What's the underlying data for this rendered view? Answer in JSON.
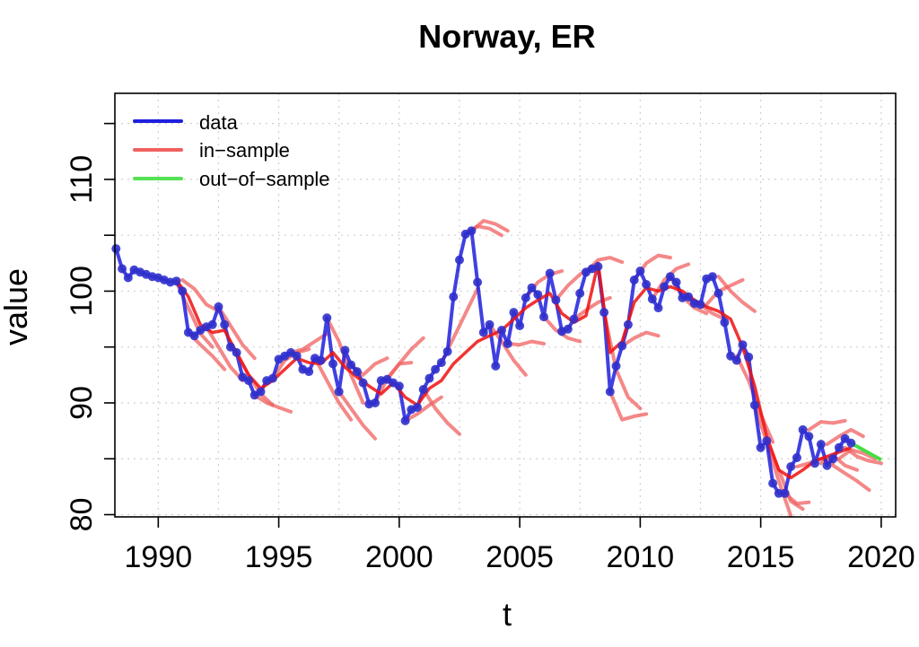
{
  "chart_data": {
    "type": "line",
    "title": "Norway, ER",
    "xlabel": "t",
    "ylabel": "value",
    "xlim": [
      1988.2,
      2020.6
    ],
    "ylim": [
      79.8,
      117.7
    ],
    "xticks": [
      1990,
      1995,
      2000,
      2005,
      2010,
      2015,
      2020
    ],
    "yticks": [
      80,
      90,
      100,
      110
    ],
    "grid": true,
    "colors": {
      "data": "#1f1fdd",
      "in_sample": "#f06060",
      "in_sample_mean": "#ee1111",
      "out_of_sample": "#44dd44"
    },
    "legend": [
      {
        "label": "data",
        "color": "#1f1fdd"
      },
      {
        "label": "in−sample",
        "color": "#f06060"
      },
      {
        "label": "out−of−sample",
        "color": "#55e055"
      }
    ],
    "series": [
      {
        "name": "data",
        "x": [
          1988.25,
          1988.5,
          1988.75,
          1989.0,
          1989.25,
          1989.5,
          1989.75,
          1990.0,
          1990.25,
          1990.5,
          1990.75,
          1991.0,
          1991.25,
          1991.5,
          1991.75,
          1992.0,
          1992.25,
          1992.5,
          1992.75,
          1993.0,
          1993.25,
          1993.5,
          1993.75,
          1994.0,
          1994.25,
          1994.5,
          1994.75,
          1995.0,
          1995.25,
          1995.5,
          1995.75,
          1996.0,
          1996.25,
          1996.5,
          1996.75,
          1997.0,
          1997.25,
          1997.5,
          1997.75,
          1998.0,
          1998.25,
          1998.5,
          1998.75,
          1999.0,
          1999.25,
          1999.5,
          1999.75,
          2000.0,
          2000.25,
          2000.5,
          2000.75,
          2001.0,
          2001.25,
          2001.5,
          2001.75,
          2002.0,
          2002.25,
          2002.5,
          2002.75,
          2003.0,
          2003.25,
          2003.5,
          2003.75,
          2004.0,
          2004.25,
          2004.5,
          2004.75,
          2005.0,
          2005.25,
          2005.5,
          2005.75,
          2006.0,
          2006.25,
          2006.5,
          2006.75,
          2007.0,
          2007.25,
          2007.5,
          2007.75,
          2008.0,
          2008.25,
          2008.5,
          2008.75,
          2009.0,
          2009.25,
          2009.5,
          2009.75,
          2010.0,
          2010.25,
          2010.5,
          2010.75,
          2011.0,
          2011.25,
          2011.5,
          2011.75,
          2012.0,
          2012.25,
          2012.5,
          2012.75,
          2013.0,
          2013.25,
          2013.5,
          2013.75,
          2014.0,
          2014.25,
          2014.5,
          2014.75,
          2015.0,
          2015.25,
          2015.5,
          2015.75,
          2016.0,
          2016.25,
          2016.5,
          2016.75,
          2017.0,
          2017.25,
          2017.5,
          2017.75,
          2018.0,
          2018.25,
          2018.5,
          2018.75
        ],
        "values": [
          103.8,
          102.0,
          101.2,
          101.9,
          101.7,
          101.5,
          101.3,
          101.2,
          101.0,
          100.8,
          100.9,
          100.0,
          96.3,
          96.0,
          96.5,
          96.8,
          97.0,
          98.6,
          97.0,
          95.0,
          94.5,
          92.3,
          92.0,
          90.7,
          91.0,
          92.0,
          92.2,
          93.9,
          94.2,
          94.5,
          94.2,
          93.0,
          92.8,
          94.0,
          93.8,
          97.6,
          93.5,
          91.0,
          94.7,
          93.4,
          92.8,
          91.8,
          89.9,
          90.0,
          92.0,
          92.1,
          91.8,
          91.5,
          88.4,
          89.4,
          89.6,
          91.2,
          92.2,
          93.0,
          93.6,
          94.6,
          99.5,
          102.8,
          105.1,
          105.4,
          100.8,
          96.3,
          97.0,
          93.3,
          96.5,
          95.3,
          98.1,
          96.9,
          99.4,
          100.3,
          99.7,
          97.7,
          101.6,
          99.2,
          96.4,
          96.6,
          97.5,
          99.8,
          101.7,
          102.0,
          102.2,
          98.1,
          91.0,
          93.3,
          95.1,
          97.0,
          101.0,
          101.8,
          100.6,
          99.3,
          98.5,
          100.4,
          101.3,
          100.8,
          99.4,
          99.5,
          98.9,
          98.8,
          101.1,
          101.3,
          99.8,
          97.2,
          94.2,
          93.8,
          95.2,
          94.1,
          89.8,
          86.0,
          86.6,
          82.8,
          81.9,
          81.9,
          84.3,
          85.1,
          87.6,
          87.0,
          84.6,
          86.3,
          84.4,
          85.0,
          86.0,
          86.8,
          86.4
        ]
      },
      {
        "name": "in-sample mean",
        "x": [
          1990.75,
          1991.25,
          1991.75,
          1992.25,
          1992.75,
          1993.25,
          1993.75,
          1994.25,
          1994.75,
          1995.25,
          1995.75,
          1996.25,
          1996.75,
          1997.25,
          1997.75,
          1998.25,
          1998.75,
          1999.25,
          1999.75,
          2000.25,
          2000.75,
          2001.25,
          2001.75,
          2002.25,
          2002.75,
          2003.25,
          2003.75,
          2004.25,
          2004.75,
          2005.25,
          2005.75,
          2006.25,
          2006.75,
          2007.25,
          2007.75,
          2008.25,
          2008.75,
          2009.25,
          2009.75,
          2010.25,
          2010.75,
          2011.25,
          2011.75,
          2012.25,
          2012.75,
          2013.25,
          2013.75,
          2014.25,
          2014.75,
          2015.25,
          2015.75,
          2016.25,
          2016.75,
          2017.25,
          2017.75,
          2018.25,
          2018.75
        ],
        "values": [
          101.0,
          99.5,
          97.0,
          96.3,
          96.5,
          94.5,
          92.5,
          91.3,
          92.0,
          93.0,
          94.0,
          93.6,
          93.5,
          94.5,
          93.2,
          92.3,
          91.5,
          90.8,
          91.8,
          90.5,
          89.8,
          91.3,
          92.0,
          93.5,
          94.5,
          95.5,
          96.0,
          96.5,
          97.5,
          98.5,
          99.2,
          99.8,
          98.0,
          97.2,
          97.8,
          102.5,
          94.5,
          95.5,
          99.0,
          100.3,
          100.0,
          100.4,
          100.0,
          99.2,
          98.6,
          98.2,
          97.5,
          95.0,
          91.5,
          87.0,
          84.0,
          83.3,
          84.0,
          84.8,
          85.2,
          85.6,
          86.0
        ]
      },
      {
        "name": "out-of-sample",
        "x": [
          2018.75,
          2019.0,
          2019.25,
          2019.5,
          2019.75,
          2020.0
        ],
        "values": [
          86.4,
          86.1,
          85.8,
          85.5,
          85.2,
          84.9
        ]
      }
    ],
    "forecast_paths": [
      {
        "x": [
          1990.75,
          1991.25,
          1991.75,
          1992.25
        ],
        "values": [
          100.8,
          98.5,
          96.2,
          95.0
        ]
      },
      {
        "x": [
          1991.0,
          1991.5,
          1992.0,
          1992.5
        ],
        "values": [
          101.0,
          100.2,
          98.8,
          98.2
        ]
      },
      {
        "x": [
          1991.25,
          1991.75,
          1992.25,
          1992.75
        ],
        "values": [
          96.3,
          95.2,
          94.2,
          93.0
        ]
      },
      {
        "x": [
          1992.0,
          1992.5,
          1993.0,
          1993.5
        ],
        "values": [
          96.8,
          95.0,
          93.2,
          92.0
        ]
      },
      {
        "x": [
          1992.5,
          1993.0,
          1993.5,
          1994.0
        ],
        "values": [
          98.6,
          96.9,
          95.2,
          94.0
        ]
      },
      {
        "x": [
          1993.25,
          1993.75,
          1994.25,
          1994.75
        ],
        "values": [
          94.5,
          92.5,
          90.8,
          89.8
        ]
      },
      {
        "x": [
          1994.0,
          1994.5,
          1995.0,
          1995.5
        ],
        "values": [
          90.7,
          90.0,
          89.6,
          89.2
        ]
      },
      {
        "x": [
          1994.75,
          1995.25,
          1995.75,
          1996.25
        ],
        "values": [
          92.2,
          93.8,
          94.5,
          94.8
        ]
      },
      {
        "x": [
          1995.5,
          1996.0,
          1996.5,
          1997.0
        ],
        "values": [
          94.5,
          94.8,
          95.5,
          96.2
        ]
      },
      {
        "x": [
          1996.5,
          1997.0,
          1997.5,
          1998.0
        ],
        "values": [
          94.0,
          92.0,
          90.0,
          88.5
        ]
      },
      {
        "x": [
          1997.0,
          1997.5,
          1998.0,
          1998.5
        ],
        "values": [
          97.6,
          95.5,
          92.5,
          90.0
        ]
      },
      {
        "x": [
          1997.5,
          1998.0,
          1998.5,
          1999.0
        ],
        "values": [
          91.0,
          89.5,
          88.0,
          86.8
        ]
      },
      {
        "x": [
          1998.0,
          1998.5,
          1999.0,
          1999.5
        ],
        "values": [
          93.4,
          92.5,
          93.5,
          94.0
        ]
      },
      {
        "x": [
          1999.0,
          1999.5,
          2000.0,
          2000.5
        ],
        "values": [
          90.0,
          92.2,
          93.5,
          93.6
        ]
      },
      {
        "x": [
          1999.5,
          2000.0,
          2000.5,
          2001.0
        ],
        "values": [
          92.1,
          93.5,
          94.8,
          95.8
        ]
      },
      {
        "x": [
          2000.25,
          2000.75,
          2001.25,
          2001.75
        ],
        "values": [
          88.4,
          89.0,
          89.8,
          90.5
        ]
      },
      {
        "x": [
          2001.0,
          2001.5,
          2002.0,
          2002.5
        ],
        "values": [
          91.2,
          89.5,
          88.2,
          87.2
        ]
      },
      {
        "x": [
          2001.75,
          2002.25,
          2002.75,
          2003.25
        ],
        "values": [
          93.6,
          95.8,
          98.0,
          100.2
        ]
      },
      {
        "x": [
          2002.75,
          2003.25,
          2003.75,
          2004.25
        ],
        "values": [
          105.1,
          105.8,
          105.6,
          105.0
        ]
      },
      {
        "x": [
          2003.0,
          2003.5,
          2004.0,
          2004.5
        ],
        "values": [
          105.4,
          106.3,
          106.0,
          105.4
        ]
      },
      {
        "x": [
          2003.75,
          2004.25,
          2004.75,
          2005.25
        ],
        "values": [
          97.0,
          95.5,
          93.8,
          92.5
        ]
      },
      {
        "x": [
          2004.5,
          2005.0,
          2005.5,
          2006.0
        ],
        "values": [
          95.3,
          95.2,
          95.5,
          95.3
        ]
      },
      {
        "x": [
          2005.25,
          2005.75,
          2006.25,
          2006.75
        ],
        "values": [
          99.4,
          100.8,
          101.5,
          101.8
        ]
      },
      {
        "x": [
          2006.0,
          2006.5,
          2007.0,
          2007.5
        ],
        "values": [
          97.7,
          96.5,
          95.8,
          95.5
        ]
      },
      {
        "x": [
          2006.5,
          2007.0,
          2007.5,
          2008.0
        ],
        "values": [
          99.2,
          100.5,
          101.5,
          102.2
        ]
      },
      {
        "x": [
          2007.25,
          2007.75,
          2008.25,
          2008.75
        ],
        "values": [
          97.5,
          98.3,
          99.0,
          99.4
        ]
      },
      {
        "x": [
          2007.75,
          2008.25,
          2008.75,
          2009.25
        ],
        "values": [
          101.7,
          102.8,
          103.0,
          102.6
        ]
      },
      {
        "x": [
          2008.5,
          2009.0,
          2009.5,
          2010.0
        ],
        "values": [
          98.1,
          93.0,
          90.5,
          89.5
        ]
      },
      {
        "x": [
          2008.75,
          2009.25,
          2009.75,
          2010.25
        ],
        "values": [
          91.0,
          88.5,
          88.8,
          89.0
        ]
      },
      {
        "x": [
          2009.25,
          2009.75,
          2010.25,
          2010.75
        ],
        "values": [
          95.1,
          95.8,
          96.3,
          96.0
        ]
      },
      {
        "x": [
          2009.75,
          2010.25,
          2010.75,
          2011.25
        ],
        "values": [
          101.0,
          102.5,
          103.2,
          103.0
        ]
      },
      {
        "x": [
          2010.5,
          2011.0,
          2011.5,
          2012.0
        ],
        "values": [
          99.3,
          101.0,
          102.0,
          102.4
        ]
      },
      {
        "x": [
          2011.25,
          2011.75,
          2012.25,
          2012.75
        ],
        "values": [
          101.3,
          99.5,
          98.5,
          98.0
        ]
      },
      {
        "x": [
          2012.0,
          2012.5,
          2013.0,
          2013.5
        ],
        "values": [
          99.5,
          98.8,
          98.0,
          97.5
        ]
      },
      {
        "x": [
          2012.75,
          2013.25,
          2013.75,
          2014.25
        ],
        "values": [
          98.8,
          100.0,
          100.5,
          101.0
        ]
      },
      {
        "x": [
          2013.25,
          2013.75,
          2014.25,
          2014.75
        ],
        "values": [
          101.3,
          100.0,
          99.0,
          98.2
        ]
      },
      {
        "x": [
          2014.0,
          2014.5,
          2015.0,
          2015.5
        ],
        "values": [
          94.2,
          92.0,
          89.0,
          86.5
        ]
      },
      {
        "x": [
          2014.75,
          2015.25,
          2015.75,
          2016.25
        ],
        "values": [
          89.8,
          86.5,
          83.0,
          79.9
        ]
      },
      {
        "x": [
          2015.25,
          2015.75,
          2016.25,
          2016.75
        ],
        "values": [
          86.6,
          84.0,
          81.2,
          80.5
        ]
      },
      {
        "x": [
          2016.0,
          2016.5,
          2017.0
        ],
        "values": [
          81.9,
          81.0,
          81.1
        ]
      },
      {
        "x": [
          2016.5,
          2017.0,
          2017.5,
          2018.0
        ],
        "values": [
          84.3,
          84.6,
          85.0,
          84.6
        ]
      },
      {
        "x": [
          2017.0,
          2017.5,
          2018.0,
          2018.5
        ],
        "values": [
          87.6,
          88.3,
          88.2,
          88.4
        ]
      },
      {
        "x": [
          2017.5,
          2018.0,
          2018.5,
          2019.0
        ],
        "values": [
          84.6,
          85.3,
          84.4,
          84.0
        ]
      },
      {
        "x": [
          2017.75,
          2018.25,
          2018.75,
          2019.25
        ],
        "values": [
          86.3,
          87.0,
          87.6,
          87.0
        ]
      },
      {
        "x": [
          2018.0,
          2018.5,
          2019.0,
          2019.5
        ],
        "values": [
          84.4,
          83.7,
          83.0,
          82.2
        ]
      },
      {
        "x": [
          2018.25,
          2018.75,
          2019.25,
          2019.75
        ],
        "values": [
          85.0,
          85.8,
          85.5,
          85.0
        ]
      },
      {
        "x": [
          2018.5,
          2019.0,
          2019.5,
          2020.0
        ],
        "values": [
          86.0,
          85.2,
          84.8,
          84.6
        ]
      }
    ]
  }
}
